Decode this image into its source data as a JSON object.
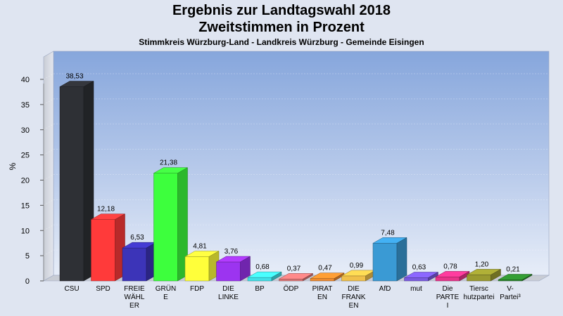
{
  "header": {
    "title": "Ergebnis zur Landtagswahl 2018",
    "subtitle": "Zweitstimmen in Prozent",
    "context": "Stimmkreis Würzburg-Land - Landkreis Würzburg - Gemeinde Eisingen"
  },
  "chart_data": {
    "type": "bar",
    "title": "Ergebnis zur Landtagswahl 2018",
    "subtitle": "Zweitstimmen in Prozent",
    "xlabel": "",
    "ylabel": "%",
    "ylim": [
      0,
      40
    ],
    "yticks": [
      0,
      5,
      10,
      15,
      20,
      25,
      30,
      35,
      40
    ],
    "grid": true,
    "categories": [
      [
        "CSU"
      ],
      [
        "SPD"
      ],
      [
        "FREIE",
        "WÄHL",
        "ER"
      ],
      [
        "GRÜN",
        "E"
      ],
      [
        "FDP"
      ],
      [
        "DIE",
        "LINKE"
      ],
      [
        "BP"
      ],
      [
        "ÖDP"
      ],
      [
        "PIRAT",
        "EN"
      ],
      [
        "DIE",
        "FRANK",
        "EN"
      ],
      [
        "AfD"
      ],
      [
        "mut"
      ],
      [
        "Die",
        "PARTE",
        "I"
      ],
      [
        "Tiersc",
        "hutzpartei"
      ],
      [
        "V-",
        "Partei³"
      ]
    ],
    "values": [
      38.53,
      12.18,
      6.53,
      21.38,
      4.81,
      3.76,
      0.68,
      0.37,
      0.47,
      0.99,
      7.48,
      0.63,
      0.78,
      1.2,
      0.21
    ],
    "value_labels": [
      "38,53",
      "12,18",
      "6,53",
      "21,38",
      "4,81",
      "3,76",
      "0,68",
      "0,37",
      "0,47",
      "0,99",
      "7,48",
      "0,63",
      "0,78",
      "1,20",
      "0,21"
    ],
    "colors": [
      "#2e3035",
      "#ff3a3a",
      "#3c34b8",
      "#3dff3d",
      "#ffff3a",
      "#9c34f0",
      "#40e0e8",
      "#e07878",
      "#ee8a2e",
      "#f0c04a",
      "#3a9ad4",
      "#7a5ae0",
      "#e8348a",
      "#9a9a30",
      "#2e8a2e"
    ]
  }
}
